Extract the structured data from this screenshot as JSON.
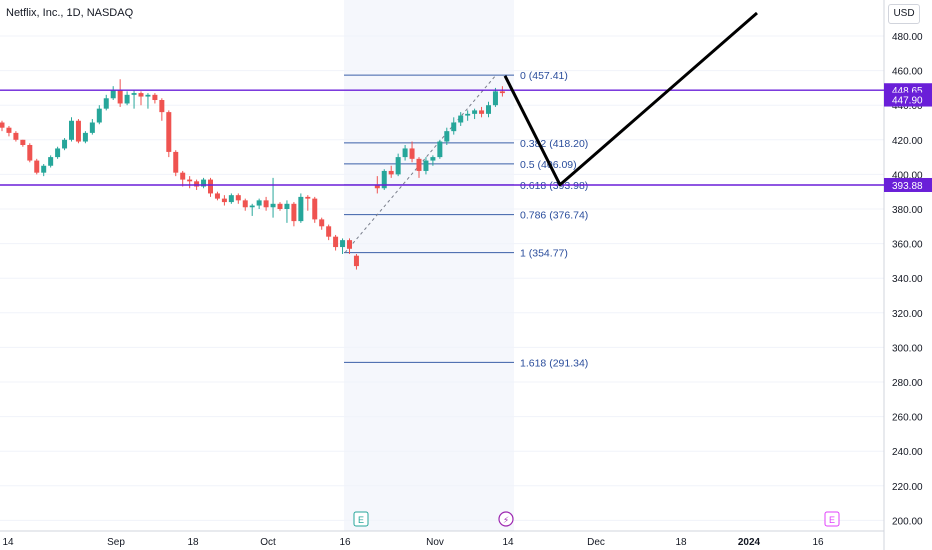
{
  "window": {
    "title": "Netflix, Inc., 1D, NASDAQ",
    "currency": "USD"
  },
  "chart_data": {
    "type": "candlestick",
    "y_axis": {
      "range": [
        196,
        500
      ],
      "ticks": [
        480,
        460,
        440,
        420,
        400,
        380,
        360,
        340,
        320,
        300,
        280,
        260,
        240,
        220,
        200
      ],
      "tick_labels": [
        "480.00",
        "460.00",
        "440.00",
        "420.00",
        "400.00",
        "380.00",
        "360.00",
        "340.00",
        "320.00",
        "300.00",
        "280.00",
        "260.00",
        "240.00",
        "220.00",
        "200.00"
      ]
    },
    "x_axis": {
      "tick_labels": [
        "14",
        "Sep",
        "18",
        "Oct",
        "16",
        "Nov",
        "14",
        "Dec",
        "18",
        "2024",
        "16"
      ],
      "bold_labels": [
        "2024"
      ]
    },
    "candles": [
      [
        430,
        431,
        425,
        427
      ],
      [
        427,
        428,
        422,
        424
      ],
      [
        424,
        425,
        419,
        420
      ],
      [
        420,
        420,
        416,
        417
      ],
      [
        417,
        418,
        407,
        408
      ],
      [
        408,
        409,
        400,
        401
      ],
      [
        401,
        406,
        399,
        405
      ],
      [
        405,
        411,
        404,
        410
      ],
      [
        410,
        416,
        409,
        415
      ],
      [
        415,
        421,
        414,
        420
      ],
      [
        420,
        433,
        419,
        431
      ],
      [
        431,
        432,
        418,
        419
      ],
      [
        419,
        425,
        418,
        424
      ],
      [
        424,
        432,
        423,
        430
      ],
      [
        430,
        440,
        429,
        438
      ],
      [
        438,
        446,
        437,
        444
      ],
      [
        444,
        451,
        443,
        449
      ],
      [
        449,
        455,
        439,
        441
      ],
      [
        441,
        448,
        440,
        446
      ],
      [
        446,
        449,
        438,
        447
      ],
      [
        447,
        448,
        440,
        445
      ],
      [
        445,
        447,
        438,
        446
      ],
      [
        446,
        447,
        441,
        443
      ],
      [
        443,
        444,
        431,
        436
      ],
      [
        436,
        437,
        410,
        413
      ],
      [
        413,
        414,
        399,
        401
      ],
      [
        401,
        402,
        393,
        397
      ],
      [
        397,
        399,
        392,
        396
      ],
      [
        396,
        397,
        391,
        393
      ],
      [
        393,
        398,
        392,
        397
      ],
      [
        397,
        398,
        387,
        389
      ],
      [
        389,
        390,
        385,
        386
      ],
      [
        386,
        388,
        382,
        384
      ],
      [
        384,
        389,
        383,
        388
      ],
      [
        388,
        389,
        383,
        385
      ],
      [
        385,
        386,
        379,
        381
      ],
      [
        381,
        383,
        376,
        382
      ],
      [
        382,
        386,
        380,
        385
      ],
      [
        385,
        387,
        379,
        381
      ],
      [
        381,
        398,
        375,
        383
      ],
      [
        383,
        384,
        379,
        380
      ],
      [
        380,
        385,
        372,
        383
      ],
      [
        383,
        384,
        370,
        373
      ],
      [
        373,
        389,
        372,
        387
      ],
      [
        387,
        388,
        379,
        386
      ],
      [
        386,
        387,
        372,
        374
      ],
      [
        374,
        375,
        368,
        370
      ],
      [
        370,
        371,
        362,
        364
      ],
      [
        364,
        365,
        356,
        358
      ],
      [
        358,
        363,
        354,
        362
      ],
      [
        362,
        363,
        354,
        357
      ],
      [
        353,
        354,
        345,
        347
      ],
      [
        394,
        399,
        389,
        392
      ],
      [
        392,
        403,
        391,
        402
      ],
      [
        402,
        405,
        398,
        400
      ],
      [
        400,
        412,
        399,
        410
      ],
      [
        410,
        417,
        408,
        415
      ],
      [
        415,
        419,
        407,
        409
      ],
      [
        409,
        410,
        398,
        402
      ],
      [
        402,
        410,
        400,
        408
      ],
      [
        408,
        411,
        405,
        410
      ],
      [
        410,
        420,
        409,
        419
      ],
      [
        419,
        427,
        417,
        425
      ],
      [
        425,
        433,
        423,
        430
      ],
      [
        430,
        436,
        428,
        434
      ],
      [
        434,
        437,
        431,
        435
      ],
      [
        435,
        438,
        432,
        437
      ],
      [
        437,
        439,
        433,
        435
      ],
      [
        435,
        442,
        433,
        440
      ],
      [
        440,
        450,
        439,
        448
      ],
      [
        448,
        451,
        445,
        447
      ]
    ],
    "fibonacci": [
      {
        "label": "0 (457.41)",
        "value": 457.41
      },
      {
        "label": "0.382 (418.20)",
        "value": 418.2
      },
      {
        "label": "0.5 (406.09)",
        "value": 406.09
      },
      {
        "label": "0.618 (393.98)",
        "value": 393.98
      },
      {
        "label": "0.786 (376.74)",
        "value": 376.74
      },
      {
        "label": "1 (354.77)",
        "value": 354.77
      },
      {
        "label": "1.618 (291.34)",
        "value": 291.34
      }
    ],
    "horizontal_lines": [
      {
        "value": 448.65,
        "label": "448.65",
        "color": "#6a1fd8"
      },
      {
        "value": 393.88,
        "label": "393.88",
        "color": "#6a1fd8"
      }
    ],
    "last_price": {
      "value": 447.9,
      "label": "447.90",
      "color": "#6a1fd8"
    },
    "projection_path": [
      [
        457,
        450
      ],
      [
        394,
        520
      ],
      [
        400,
        530
      ],
      [
        488,
        610
      ]
    ],
    "colors": {
      "up": "#26a69a",
      "down": "#ef5350",
      "fib": "#3a5fa8",
      "grid": "#f0f3fa",
      "projection": "#000000"
    },
    "markers": [
      {
        "type": "earnings",
        "symbol": "E",
        "color": "#26a69a"
      },
      {
        "type": "dividend",
        "symbol": "⚡",
        "color": "#9c27b0"
      },
      {
        "type": "earnings",
        "symbol": "E",
        "color": "#e040fb"
      }
    ]
  }
}
